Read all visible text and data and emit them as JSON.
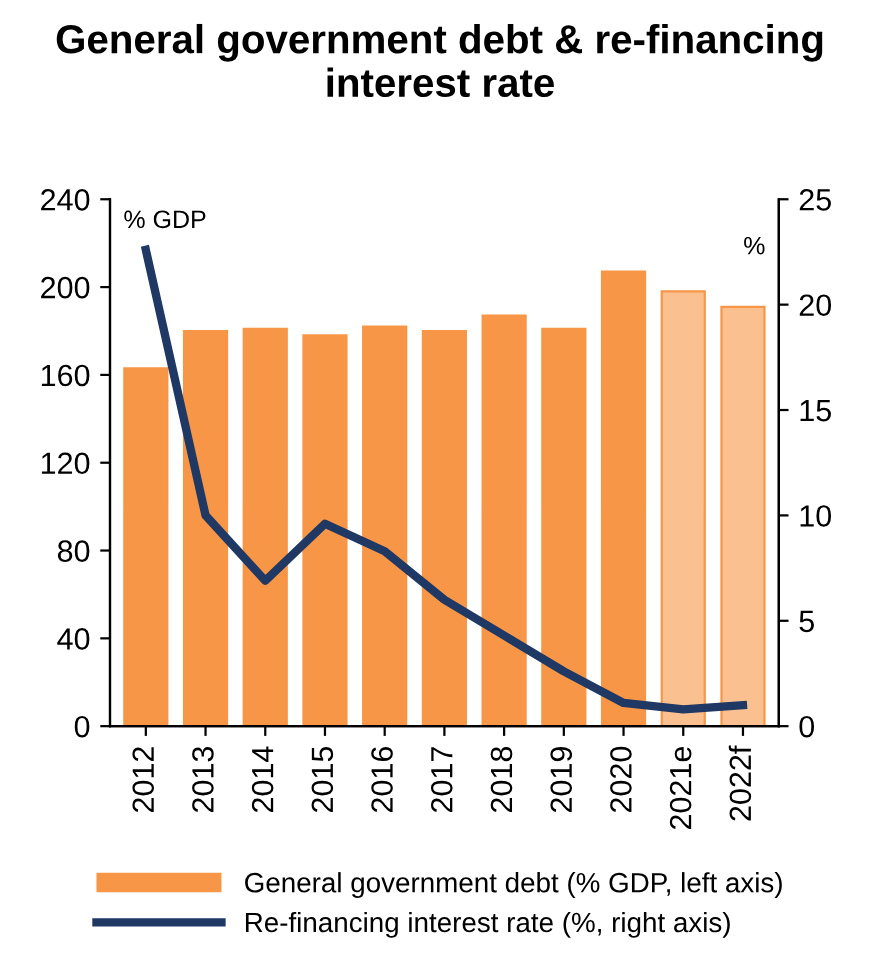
{
  "chart_data": {
    "type": "bar",
    "title": "General government debt & re-financing interest rate",
    "categories": [
      "2012",
      "2013",
      "2014",
      "2015",
      "2016",
      "2017",
      "2018",
      "2019",
      "2020",
      "2021e",
      "2022f"
    ],
    "series": [
      {
        "name": "General government debt (% GDP, left axis)",
        "color": "#f79646",
        "colors": [
          "#f79646",
          "#f79646",
          "#f79646",
          "#f79646",
          "#f79646",
          "#f79646",
          "#f79646",
          "#f79646",
          "#f79646",
          "#fac090",
          "#fac090"
        ],
        "values": [
          163,
          180,
          181,
          178,
          182,
          180,
          187,
          181,
          207,
          198,
          191
        ]
      },
      {
        "name": "Re-financing interest rate (%, right axis)",
        "type": "line",
        "axis": "y2",
        "color": "#1f3864",
        "values": [
          22.6,
          10.0,
          6.9,
          9.6,
          8.3,
          6.0,
          4.3,
          2.6,
          1.1,
          0.8,
          1.0
        ]
      }
    ],
    "ylim": [
      0,
      240
    ],
    "yticks": [
      0,
      40,
      80,
      120,
      160,
      200,
      240
    ],
    "y2lim": [
      0,
      25
    ],
    "y2ticks": [
      0,
      5,
      10,
      15,
      20,
      25
    ],
    "annotations": [
      "% GDP",
      "%"
    ],
    "legend": "bottom",
    "grid": false
  }
}
